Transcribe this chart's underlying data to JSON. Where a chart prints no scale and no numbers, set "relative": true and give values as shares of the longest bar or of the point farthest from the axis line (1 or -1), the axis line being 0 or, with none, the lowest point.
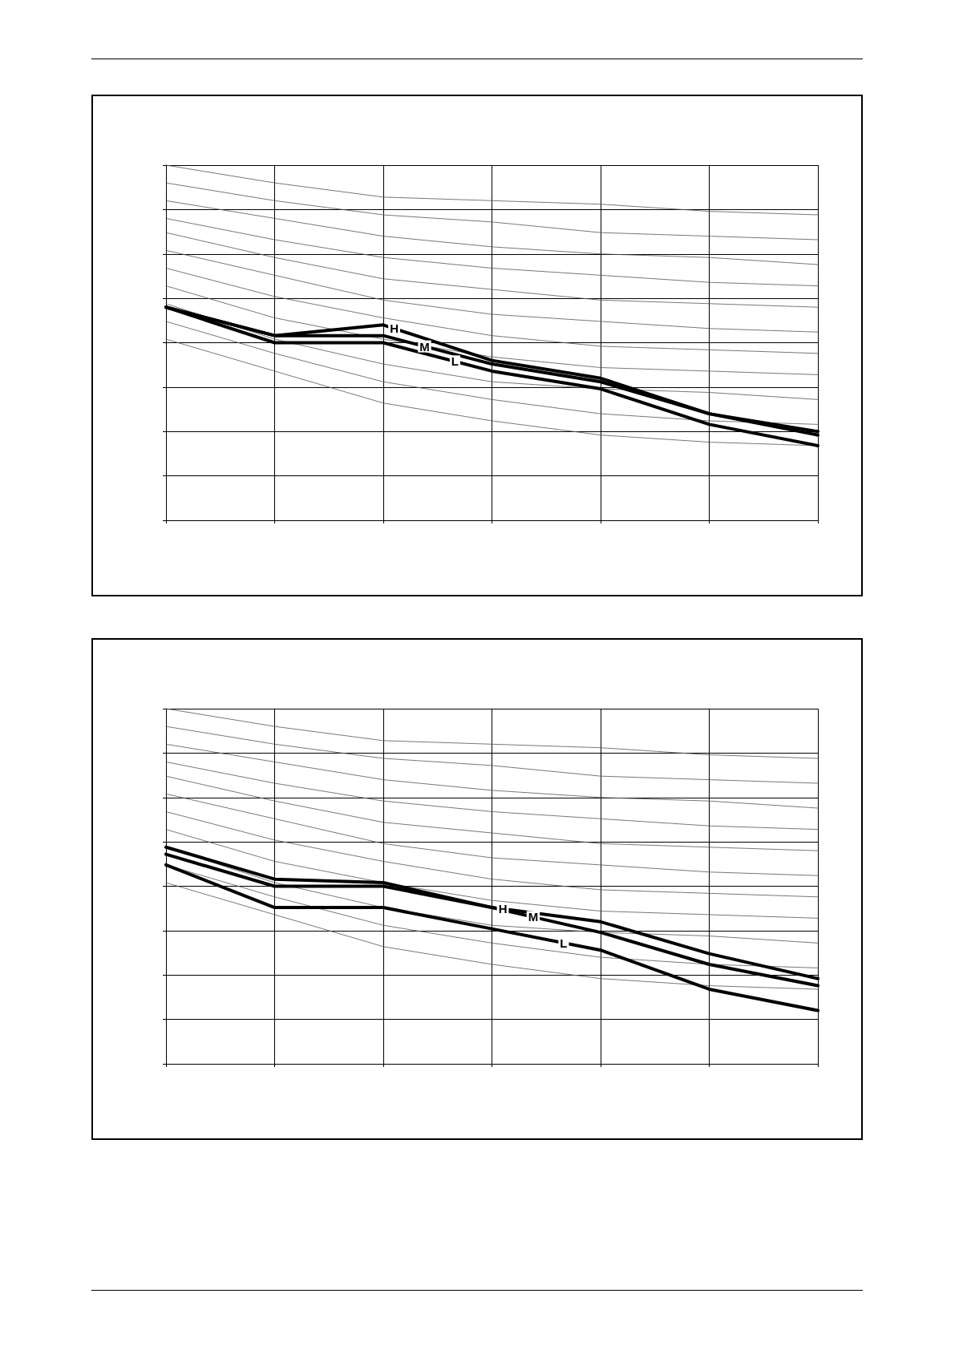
{
  "chart_data": [
    {
      "type": "line",
      "relative": true,
      "grid": true,
      "marker": "none",
      "line_style": "solid",
      "categories": [
        null,
        null,
        null,
        null,
        null,
        null,
        null
      ],
      "series": [
        {
          "color": "#555555",
          "values": [
            1.0,
            0.95,
            0.91,
            0.9,
            0.89,
            0.87,
            0.86
          ]
        },
        {
          "color": "#555555",
          "values": [
            0.95,
            0.9,
            0.86,
            0.84,
            0.81,
            0.8,
            0.79
          ]
        },
        {
          "color": "#555555",
          "values": [
            0.9,
            0.85,
            0.8,
            0.77,
            0.75,
            0.74,
            0.72
          ]
        },
        {
          "color": "#555555",
          "values": [
            0.85,
            0.79,
            0.74,
            0.71,
            0.69,
            0.67,
            0.66
          ]
        },
        {
          "color": "#555555",
          "values": [
            0.81,
            0.74,
            0.68,
            0.65,
            0.62,
            0.61,
            0.6
          ]
        },
        {
          "color": "#555555",
          "values": [
            0.76,
            0.69,
            0.62,
            0.58,
            0.56,
            0.54,
            0.53
          ]
        },
        {
          "color": "#555555",
          "values": [
            0.71,
            0.63,
            0.57,
            0.52,
            0.49,
            0.48,
            0.47
          ]
        },
        {
          "color": "#555555",
          "values": [
            0.66,
            0.57,
            0.51,
            0.46,
            0.43,
            0.42,
            0.41
          ]
        },
        {
          "color": "#555555",
          "values": [
            0.61,
            0.51,
            0.44,
            0.39,
            0.37,
            0.36,
            0.34
          ]
        },
        {
          "color": "#555555",
          "values": [
            0.56,
            0.47,
            0.39,
            0.34,
            0.3,
            0.28,
            0.27
          ]
        },
        {
          "color": "#555555",
          "values": [
            0.51,
            0.42,
            0.33,
            0.28,
            0.24,
            0.22,
            0.21
          ]
        },
        {
          "name": "H",
          "color": "#000000",
          "values": [
            0.6,
            0.52,
            0.55,
            0.45,
            0.4,
            0.3,
            0.25
          ]
        },
        {
          "name": "M",
          "color": "#000000",
          "values": [
            0.6,
            0.52,
            0.52,
            0.44,
            0.39,
            0.3,
            0.24
          ]
        },
        {
          "name": "L",
          "color": "#000000",
          "values": [
            0.6,
            0.5,
            0.5,
            0.42,
            0.37,
            0.27,
            0.21
          ]
        }
      ]
    },
    {
      "type": "line",
      "relative": true,
      "grid": true,
      "marker": "none",
      "line_style": "solid",
      "categories": [
        null,
        null,
        null,
        null,
        null,
        null,
        null
      ],
      "series": [
        {
          "color": "#555555",
          "values": [
            1.0,
            0.95,
            0.91,
            0.9,
            0.89,
            0.87,
            0.86
          ]
        },
        {
          "color": "#555555",
          "values": [
            0.95,
            0.9,
            0.86,
            0.84,
            0.81,
            0.8,
            0.79
          ]
        },
        {
          "color": "#555555",
          "values": [
            0.9,
            0.85,
            0.8,
            0.77,
            0.75,
            0.74,
            0.72
          ]
        },
        {
          "color": "#555555",
          "values": [
            0.85,
            0.79,
            0.74,
            0.71,
            0.69,
            0.67,
            0.66
          ]
        },
        {
          "color": "#555555",
          "values": [
            0.81,
            0.74,
            0.68,
            0.65,
            0.62,
            0.61,
            0.6
          ]
        },
        {
          "color": "#555555",
          "values": [
            0.76,
            0.69,
            0.62,
            0.58,
            0.56,
            0.54,
            0.53
          ]
        },
        {
          "color": "#555555",
          "values": [
            0.71,
            0.63,
            0.57,
            0.52,
            0.49,
            0.48,
            0.47
          ]
        },
        {
          "color": "#555555",
          "values": [
            0.66,
            0.57,
            0.51,
            0.46,
            0.43,
            0.42,
            0.41
          ]
        },
        {
          "color": "#555555",
          "values": [
            0.61,
            0.51,
            0.44,
            0.39,
            0.37,
            0.36,
            0.34
          ]
        },
        {
          "color": "#555555",
          "values": [
            0.56,
            0.47,
            0.39,
            0.34,
            0.3,
            0.28,
            0.27
          ]
        },
        {
          "color": "#555555",
          "values": [
            0.51,
            0.42,
            0.33,
            0.28,
            0.24,
            0.22,
            0.21
          ]
        },
        {
          "name": "H",
          "color": "#000000",
          "values": [
            0.61,
            0.52,
            0.51,
            0.44,
            0.4,
            0.31,
            0.24
          ]
        },
        {
          "name": "M",
          "color": "#000000",
          "values": [
            0.59,
            0.5,
            0.5,
            0.44,
            0.37,
            0.28,
            0.22
          ]
        },
        {
          "name": "L",
          "color": "#000000",
          "values": [
            0.56,
            0.44,
            0.44,
            0.38,
            0.32,
            0.21,
            0.15
          ]
        }
      ]
    }
  ]
}
